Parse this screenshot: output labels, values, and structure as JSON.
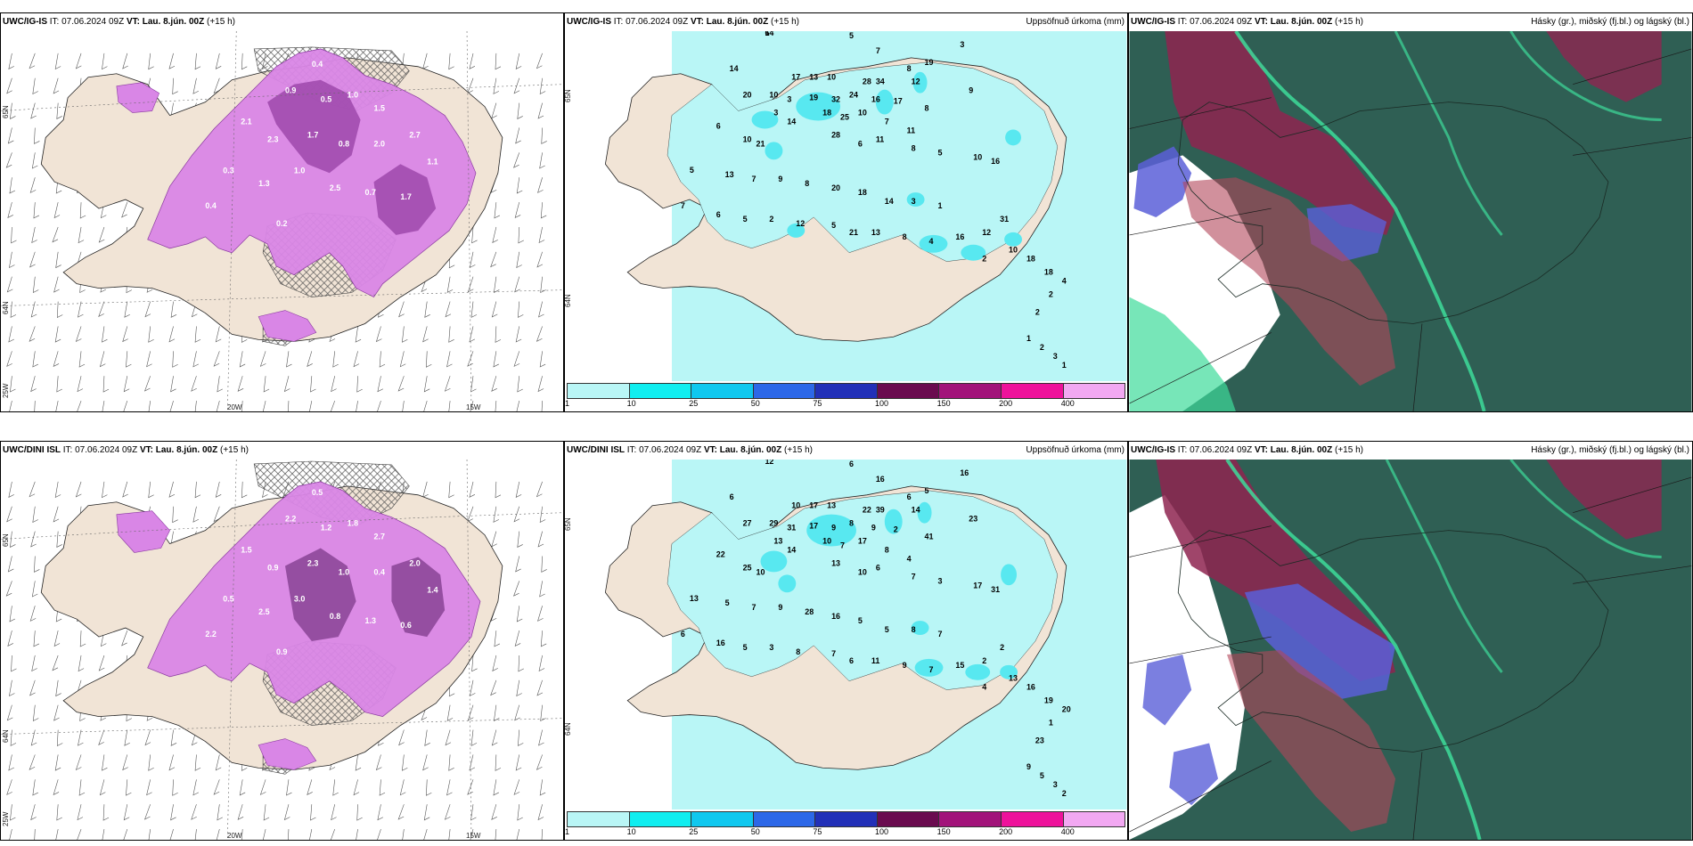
{
  "rows": [
    {
      "left": {
        "model": "UWC/IG-IS",
        "it_label": "IT:",
        "it_value": "07.06.2024 09Z",
        "vt_label": "VT:",
        "vt_value": "Lau. 8.jún. 00Z",
        "lead": "(+15 h)",
        "lat_labels": [
          "65N",
          "64N"
        ],
        "lon_labels": [
          "20W",
          "15W",
          "25W"
        ],
        "precip_values": [
          "0.4",
          "0.9",
          "0.5",
          "1.0",
          "1.5",
          "2.1",
          "2.3",
          "1.7",
          "0.8",
          "2.0",
          "2.7",
          "1.1",
          "0.3",
          "1.3",
          "1.0",
          "2.5",
          "0.7",
          "1.7",
          "0.4",
          "0.2"
        ]
      },
      "middle": {
        "model": "UWC/IG-IS",
        "it_label": "IT:",
        "it_value": "07.06.2024 09Z",
        "vt_label": "VT:",
        "vt_value": "Lau. 8.jún. 00Z",
        "lead": "(+15 h)",
        "right_title": "Uppsöfnuð úrkoma (mm)",
        "lat_labels": [
          "65N",
          "64N"
        ],
        "scale_labels": [
          "1",
          "10",
          "25",
          "50",
          "75",
          "100",
          "150",
          "200",
          "400"
        ],
        "values": [
          "6",
          "5",
          "3",
          "7",
          "8",
          "19",
          "14",
          "12",
          "17",
          "13",
          "10",
          "28",
          "34",
          "20",
          "10",
          "3",
          "19",
          "32",
          "24",
          "16",
          "17",
          "8",
          "9",
          "3",
          "14",
          "18",
          "25",
          "10",
          "7",
          "11",
          "6",
          "10",
          "21",
          "28",
          "6",
          "11",
          "8",
          "5",
          "10",
          "16",
          "5",
          "13",
          "7",
          "9",
          "8",
          "20",
          "18",
          "14",
          "3",
          "1",
          "7",
          "6",
          "5",
          "2",
          "12",
          "5",
          "21",
          "13",
          "8",
          "4",
          "16",
          "12",
          "31",
          "10",
          "18",
          "18",
          "4",
          "2",
          "1",
          "2",
          "3",
          "1",
          "2",
          "2",
          "14"
        ]
      },
      "right": {
        "model": "UWC/IG-IS",
        "it_label": "IT:",
        "it_value": "07.06.2024 09Z",
        "vt_label": "VT:",
        "vt_value": "Lau. 8.jún. 00Z",
        "lead": "(+15 h)",
        "right_title": "Hásky (gr.), miðský (fj.bl.) og lágský (bl.)"
      }
    },
    {
      "left": {
        "model": "UWC/DINI ISL",
        "it_label": "IT:",
        "it_value": "07.06.2024 09Z",
        "vt_label": "VT:",
        "vt_value": "Lau. 8.jún. 00Z",
        "lead": "(+15 h)",
        "lat_labels": [
          "65N",
          "64N"
        ],
        "lon_labels": [
          "20W",
          "15W",
          "25W"
        ],
        "precip_values": [
          "0.5",
          "2.2",
          "1.2",
          "1.8",
          "2.7",
          "1.5",
          "0.9",
          "2.3",
          "1.0",
          "0.4",
          "2.0",
          "1.4",
          "0.5",
          "2.5",
          "3.0",
          "0.8",
          "1.3",
          "0.6",
          "2.2",
          "0.9"
        ]
      },
      "middle": {
        "model": "UWC/DINI ISL",
        "it_label": "IT:",
        "it_value": "07.06.2024 09Z",
        "vt_label": "VT:",
        "vt_value": "Lau. 8.jún. 00Z",
        "lead": "(+15 h)",
        "right_title": "Uppsöfnuð úrkoma (mm)",
        "lat_labels": [
          "65N",
          "64N"
        ],
        "scale_labels": [
          "1",
          "10",
          "25",
          "50",
          "75",
          "100",
          "150",
          "200",
          "400"
        ],
        "values": [
          "12",
          "6",
          "16",
          "16",
          "6",
          "5",
          "6",
          "14",
          "10",
          "17",
          "13",
          "22",
          "39",
          "27",
          "29",
          "31",
          "17",
          "9",
          "8",
          "9",
          "2",
          "41",
          "23",
          "13",
          "14",
          "10",
          "7",
          "17",
          "8",
          "4",
          "22",
          "25",
          "10",
          "13",
          "10",
          "6",
          "7",
          "3",
          "17",
          "31",
          "13",
          "5",
          "7",
          "9",
          "28",
          "16",
          "5",
          "5",
          "8",
          "7",
          "6",
          "16",
          "5",
          "3",
          "8",
          "7",
          "6",
          "11",
          "9",
          "7",
          "15",
          "2",
          "2",
          "13",
          "16",
          "19",
          "20",
          "23",
          "9",
          "5",
          "3",
          "2",
          "1",
          "4"
        ]
      },
      "right": {
        "model": "UWC/IG-IS",
        "it_label": "IT:",
        "it_value": "07.06.2024 09Z",
        "vt_label": "VT:",
        "vt_value": "Lau. 8.jún. 00Z",
        "lead": "(+15 h)",
        "right_title": "Hásky (gr.), miðský (fj.bl.) og lágský (bl.)"
      }
    }
  ],
  "colors": {
    "land": "#f1e4d6",
    "sea": "#ffffff",
    "precip_light": "#d986e6",
    "precip_mid": "#b64ad0",
    "precip_dark": "#6b2a6e",
    "cyan_1": "#b9f6f6",
    "cyan_2": "#58e8f0",
    "cloud_dark": "#2f5f54",
    "cloud_mid": "#3f7a66",
    "cloud_high": "#8e2550",
    "cloud_low": "#5a5fd8",
    "cloud_green": "#3ddc9a",
    "scale": [
      "#b9f6f6",
      "#10eef0",
      "#10c8ef",
      "#2d68e8",
      "#2230b8",
      "#6a0b4f",
      "#a2137a",
      "#ee129b",
      "#f2a8f2"
    ]
  }
}
